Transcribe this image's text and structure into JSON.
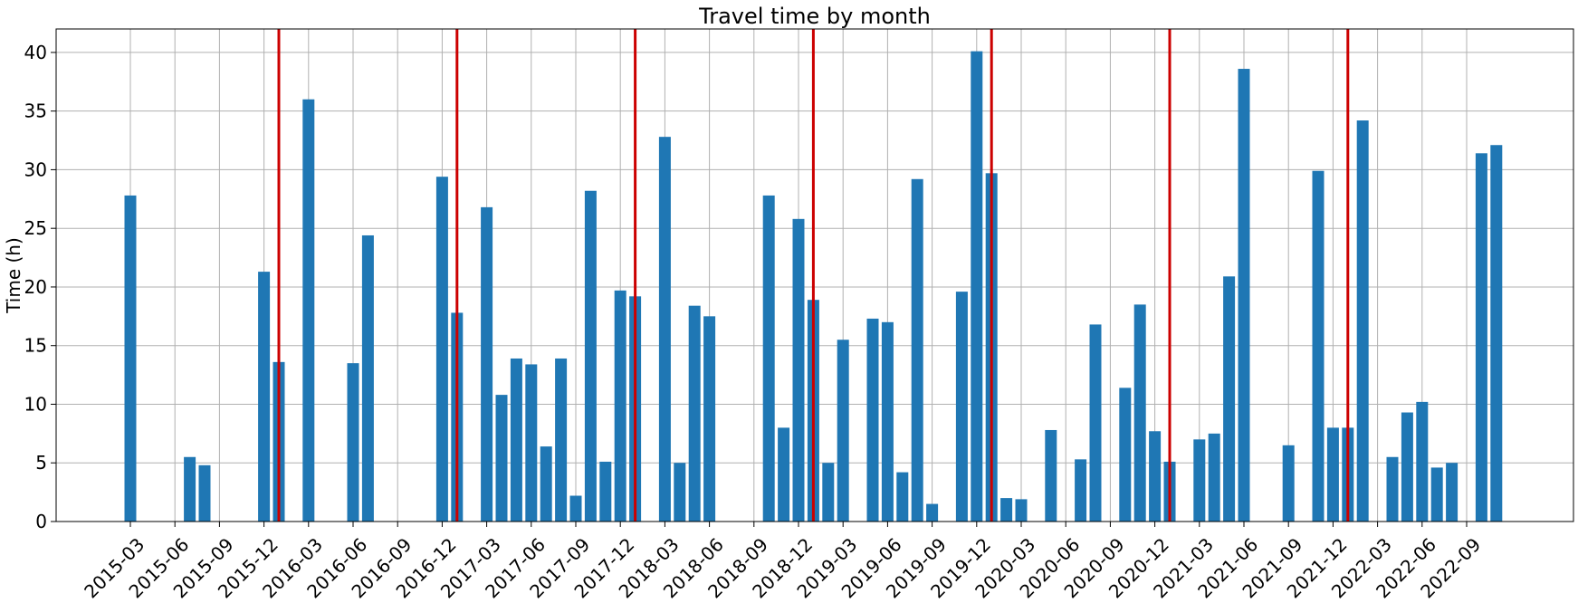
{
  "chart_data": {
    "type": "bar",
    "title": "Travel time by month",
    "xlabel": "",
    "ylabel": "Time (h)",
    "ylim": [
      0,
      42
    ],
    "yticks": [
      0,
      5,
      10,
      15,
      20,
      25,
      30,
      35,
      40
    ],
    "grid": true,
    "bar_color": "#1f77b4",
    "marker_color": "#cc0000",
    "x_tick_labels": [
      "2015-03",
      "2015-06",
      "2015-09",
      "2015-12",
      "2016-03",
      "2016-06",
      "2016-09",
      "2016-12",
      "2017-03",
      "2017-06",
      "2017-09",
      "2017-12",
      "2018-03",
      "2018-06",
      "2018-09",
      "2018-12",
      "2019-03",
      "2019-06",
      "2019-09",
      "2019-12",
      "2020-03",
      "2020-06",
      "2020-09",
      "2020-12",
      "2021-03",
      "2021-06",
      "2021-09",
      "2021-12",
      "2022-03",
      "2022-06",
      "2022-09"
    ],
    "vertical_lines": [
      "2016-01",
      "2017-01",
      "2018-01",
      "2019-01",
      "2020-01",
      "2021-01",
      "2022-01"
    ],
    "bars": [
      {
        "month": "2015-03",
        "value": 27.8
      },
      {
        "month": "2015-07",
        "value": 5.5
      },
      {
        "month": "2015-08",
        "value": 4.8
      },
      {
        "month": "2015-12",
        "value": 21.3
      },
      {
        "month": "2016-01",
        "value": 13.6
      },
      {
        "month": "2016-03",
        "value": 36.0
      },
      {
        "month": "2016-06",
        "value": 13.5
      },
      {
        "month": "2016-07",
        "value": 24.4
      },
      {
        "month": "2016-12",
        "value": 29.4
      },
      {
        "month": "2017-01",
        "value": 17.8
      },
      {
        "month": "2017-03",
        "value": 26.8
      },
      {
        "month": "2017-04",
        "value": 10.8
      },
      {
        "month": "2017-05",
        "value": 13.9
      },
      {
        "month": "2017-06",
        "value": 13.4
      },
      {
        "month": "2017-07",
        "value": 6.4
      },
      {
        "month": "2017-08",
        "value": 13.9
      },
      {
        "month": "2017-09",
        "value": 2.2
      },
      {
        "month": "2017-10",
        "value": 28.2
      },
      {
        "month": "2017-11",
        "value": 5.1
      },
      {
        "month": "2017-12",
        "value": 19.7
      },
      {
        "month": "2018-01",
        "value": 19.2
      },
      {
        "month": "2018-03",
        "value": 32.8
      },
      {
        "month": "2018-04",
        "value": 5.0
      },
      {
        "month": "2018-05",
        "value": 18.4
      },
      {
        "month": "2018-06",
        "value": 17.5
      },
      {
        "month": "2018-10",
        "value": 27.8
      },
      {
        "month": "2018-11",
        "value": 8.0
      },
      {
        "month": "2018-12",
        "value": 25.8
      },
      {
        "month": "2019-01",
        "value": 18.9
      },
      {
        "month": "2019-02",
        "value": 5.0
      },
      {
        "month": "2019-03",
        "value": 15.5
      },
      {
        "month": "2019-05",
        "value": 17.3
      },
      {
        "month": "2019-06",
        "value": 17.0
      },
      {
        "month": "2019-07",
        "value": 4.2
      },
      {
        "month": "2019-08",
        "value": 29.2
      },
      {
        "month": "2019-09",
        "value": 1.5
      },
      {
        "month": "2019-11",
        "value": 19.6
      },
      {
        "month": "2019-12",
        "value": 40.1
      },
      {
        "month": "2020-01",
        "value": 29.7
      },
      {
        "month": "2020-02",
        "value": 2.0
      },
      {
        "month": "2020-03",
        "value": 1.9
      },
      {
        "month": "2020-05",
        "value": 7.8
      },
      {
        "month": "2020-07",
        "value": 5.3
      },
      {
        "month": "2020-08",
        "value": 16.8
      },
      {
        "month": "2020-10",
        "value": 11.4
      },
      {
        "month": "2020-11",
        "value": 18.5
      },
      {
        "month": "2020-12",
        "value": 7.7
      },
      {
        "month": "2021-01",
        "value": 5.1
      },
      {
        "month": "2021-03",
        "value": 7.0
      },
      {
        "month": "2021-04",
        "value": 7.5
      },
      {
        "month": "2021-05",
        "value": 20.9
      },
      {
        "month": "2021-06",
        "value": 38.6
      },
      {
        "month": "2021-09",
        "value": 6.5
      },
      {
        "month": "2021-11",
        "value": 29.9
      },
      {
        "month": "2021-12",
        "value": 8.0
      },
      {
        "month": "2022-01",
        "value": 8.0
      },
      {
        "month": "2022-02",
        "value": 34.2
      },
      {
        "month": "2022-04",
        "value": 5.5
      },
      {
        "month": "2022-05",
        "value": 9.3
      },
      {
        "month": "2022-06",
        "value": 10.2
      },
      {
        "month": "2022-07",
        "value": 4.6
      },
      {
        "month": "2022-08",
        "value": 5.0
      },
      {
        "month": "2022-10",
        "value": 31.4
      },
      {
        "month": "2022-11",
        "value": 32.1
      }
    ]
  }
}
